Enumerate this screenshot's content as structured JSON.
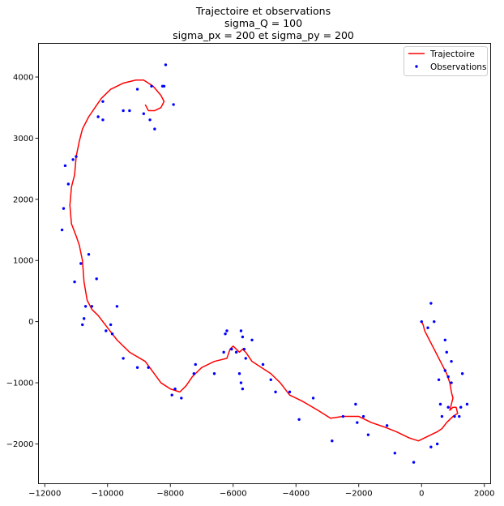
{
  "chart_data": {
    "type": "line",
    "title": "Trajectoire et observations",
    "subtitle_lines": [
      "sigma_Q = 100",
      "sigma_px = 200 et sigma_py = 200"
    ],
    "xlabel": "",
    "ylabel": "",
    "xlim": [
      -12200,
      2200
    ],
    "ylim": [
      -2650,
      4550
    ],
    "x_ticks": [
      {
        "value": -12000,
        "label": "−12000"
      },
      {
        "value": -10000,
        "label": "−10000"
      },
      {
        "value": -8000,
        "label": "−8000"
      },
      {
        "value": -6000,
        "label": "−6000"
      },
      {
        "value": -4000,
        "label": "−4000"
      },
      {
        "value": -2000,
        "label": "−2000"
      },
      {
        "value": 0,
        "label": "0"
      },
      {
        "value": 2000,
        "label": "2000"
      }
    ],
    "y_ticks": [
      {
        "value": -2000,
        "label": "−2000"
      },
      {
        "value": -1000,
        "label": "−1000"
      },
      {
        "value": 0,
        "label": "0"
      },
      {
        "value": 1000,
        "label": "1000"
      },
      {
        "value": 2000,
        "label": "2000"
      },
      {
        "value": 3000,
        "label": "3000"
      },
      {
        "value": 4000,
        "label": "4000"
      }
    ],
    "grid": false,
    "legend": {
      "position": "top-right",
      "entries": [
        {
          "label": "Trajectoire",
          "type": "line",
          "color": "#ff0000"
        },
        {
          "label": "Observations",
          "type": "marker",
          "color": "#0000ff"
        }
      ]
    },
    "series": [
      {
        "name": "Trajectoire",
        "type": "line",
        "color": "#ff0000",
        "points": [
          [
            0,
            0
          ],
          [
            50,
            -50
          ],
          [
            100,
            -150
          ],
          [
            200,
            -250
          ],
          [
            350,
            -400
          ],
          [
            500,
            -550
          ],
          [
            650,
            -700
          ],
          [
            800,
            -850
          ],
          [
            900,
            -1000
          ],
          [
            950,
            -1150
          ],
          [
            1000,
            -1250
          ],
          [
            950,
            -1350
          ],
          [
            900,
            -1450
          ],
          [
            1000,
            -1400
          ],
          [
            1100,
            -1400
          ],
          [
            1150,
            -1500
          ],
          [
            1000,
            -1550
          ],
          [
            800,
            -1650
          ],
          [
            650,
            -1750
          ],
          [
            500,
            -1800
          ],
          [
            300,
            -1850
          ],
          [
            100,
            -1900
          ],
          [
            -100,
            -1950
          ],
          [
            -400,
            -1900
          ],
          [
            -800,
            -1800
          ],
          [
            -1200,
            -1720
          ],
          [
            -1600,
            -1650
          ],
          [
            -2000,
            -1550
          ],
          [
            -2500,
            -1550
          ],
          [
            -2900,
            -1580
          ],
          [
            -3300,
            -1450
          ],
          [
            -3800,
            -1300
          ],
          [
            -4200,
            -1200
          ],
          [
            -4500,
            -1000
          ],
          [
            -4800,
            -850
          ],
          [
            -5100,
            -750
          ],
          [
            -5400,
            -650
          ],
          [
            -5600,
            -500
          ],
          [
            -5700,
            -450
          ],
          [
            -5800,
            -500
          ],
          [
            -5900,
            -450
          ],
          [
            -6000,
            -400
          ],
          [
            -6100,
            -450
          ],
          [
            -6200,
            -600
          ],
          [
            -6600,
            -650
          ],
          [
            -7000,
            -750
          ],
          [
            -7300,
            -900
          ],
          [
            -7500,
            -1050
          ],
          [
            -7700,
            -1150
          ],
          [
            -8000,
            -1100
          ],
          [
            -8300,
            -1000
          ],
          [
            -8800,
            -650
          ],
          [
            -9300,
            -500
          ],
          [
            -9700,
            -300
          ],
          [
            -10000,
            -100
          ],
          [
            -10300,
            100
          ],
          [
            -10500,
            200
          ],
          [
            -10650,
            350
          ],
          [
            -10750,
            650
          ],
          [
            -10800,
            1000
          ],
          [
            -10900,
            1250
          ],
          [
            -11000,
            1400
          ],
          [
            -11150,
            1600
          ],
          [
            -11200,
            1900
          ],
          [
            -11150,
            2200
          ],
          [
            -11050,
            2400
          ],
          [
            -11000,
            2700
          ],
          [
            -10900,
            2950
          ],
          [
            -10800,
            3150
          ],
          [
            -10600,
            3350
          ],
          [
            -10400,
            3500
          ],
          [
            -10200,
            3650
          ],
          [
            -9900,
            3800
          ],
          [
            -9500,
            3900
          ],
          [
            -9100,
            3950
          ],
          [
            -8850,
            3950
          ],
          [
            -8550,
            3850
          ],
          [
            -8300,
            3700
          ],
          [
            -8200,
            3600
          ],
          [
            -8300,
            3500
          ],
          [
            -8500,
            3450
          ],
          [
            -8700,
            3450
          ],
          [
            -8800,
            3550
          ]
        ]
      },
      {
        "name": "Observations",
        "type": "scatter",
        "color": "#0000ff",
        "points": [
          [
            0,
            0
          ],
          [
            200,
            -100
          ],
          [
            300,
            300
          ],
          [
            400,
            0
          ],
          [
            750,
            -300
          ],
          [
            800,
            -500
          ],
          [
            750,
            -800
          ],
          [
            550,
            -950
          ],
          [
            950,
            -650
          ],
          [
            850,
            -900
          ],
          [
            950,
            -1000
          ],
          [
            600,
            -1350
          ],
          [
            850,
            -1400
          ],
          [
            1050,
            -1550
          ],
          [
            1250,
            -1400
          ],
          [
            1450,
            -1350
          ],
          [
            1200,
            -1550
          ],
          [
            1300,
            -850
          ],
          [
            650,
            -1550
          ],
          [
            500,
            -2000
          ],
          [
            300,
            -2050
          ],
          [
            -250,
            -2300
          ],
          [
            -850,
            -2150
          ],
          [
            -1100,
            -1700
          ],
          [
            -1700,
            -1850
          ],
          [
            -1850,
            -1550
          ],
          [
            -2100,
            -1350
          ],
          [
            -2050,
            -1650
          ],
          [
            -2500,
            -1550
          ],
          [
            -2850,
            -1950
          ],
          [
            -3450,
            -1250
          ],
          [
            -3900,
            -1600
          ],
          [
            -4200,
            -1150
          ],
          [
            -4650,
            -1150
          ],
          [
            -4800,
            -950
          ],
          [
            -5050,
            -700
          ],
          [
            -5400,
            -300
          ],
          [
            -5600,
            -600
          ],
          [
            -5650,
            -450
          ],
          [
            -5700,
            -250
          ],
          [
            -5750,
            -150
          ],
          [
            -5800,
            -850
          ],
          [
            -5700,
            -1100
          ],
          [
            -5750,
            -1000
          ],
          [
            -5900,
            -500
          ],
          [
            -6050,
            -450
          ],
          [
            -6200,
            -150
          ],
          [
            -6250,
            -200
          ],
          [
            -6300,
            -500
          ],
          [
            -6600,
            -850
          ],
          [
            -7200,
            -700
          ],
          [
            -7250,
            -850
          ],
          [
            -7650,
            -1250
          ],
          [
            -7850,
            -1100
          ],
          [
            -7950,
            -1200
          ],
          [
            -8700,
            -750
          ],
          [
            -9050,
            -750
          ],
          [
            -9500,
            -600
          ],
          [
            -9700,
            250
          ],
          [
            -9900,
            -50
          ],
          [
            -9850,
            -200
          ],
          [
            -10050,
            -150
          ],
          [
            -10350,
            700
          ],
          [
            -10500,
            250
          ],
          [
            -10700,
            250
          ],
          [
            -10600,
            1100
          ],
          [
            -10800,
            -50
          ],
          [
            -10750,
            50
          ],
          [
            -10850,
            950
          ],
          [
            -11050,
            650
          ],
          [
            -11250,
            2250
          ],
          [
            -11350,
            2550
          ],
          [
            -11400,
            1850
          ],
          [
            -11450,
            1500
          ],
          [
            -11100,
            2650
          ],
          [
            -11000,
            2700
          ],
          [
            -10300,
            3350
          ],
          [
            -10150,
            3300
          ],
          [
            -10150,
            3600
          ],
          [
            -9500,
            3450
          ],
          [
            -9300,
            3450
          ],
          [
            -9050,
            3800
          ],
          [
            -8850,
            3400
          ],
          [
            -8600,
            3850
          ],
          [
            -8650,
            3300
          ],
          [
            -8500,
            3150
          ],
          [
            -8200,
            3850
          ],
          [
            -8250,
            3850
          ],
          [
            -8150,
            4200
          ],
          [
            -7900,
            3550
          ]
        ]
      }
    ]
  }
}
